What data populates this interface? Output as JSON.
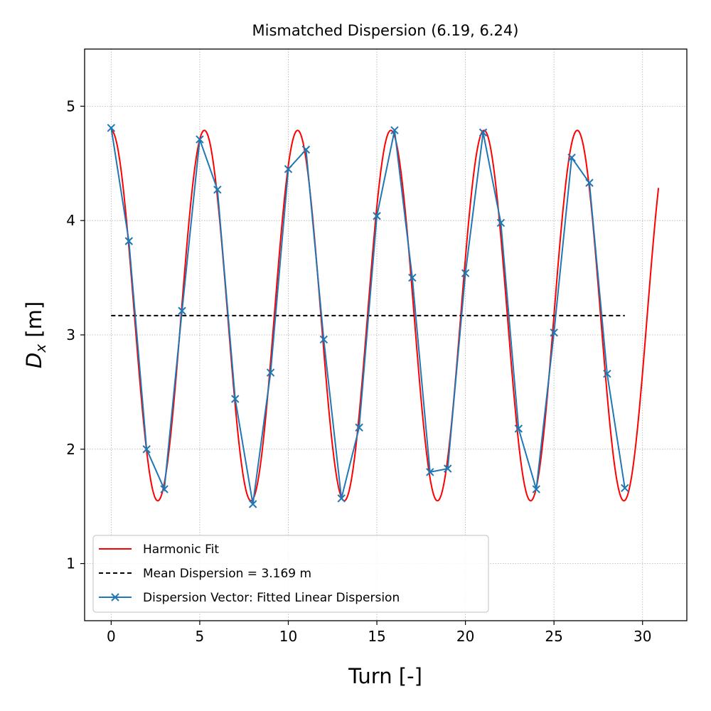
{
  "chart_data": {
    "type": "line",
    "title": "Mismatched Dispersion (6.19, 6.24)",
    "xlabel": "Turn [-]",
    "ylabel_main": "D",
    "ylabel_sub": "x",
    "ylabel_unit": " [m]",
    "xlim": [
      -1.5,
      32.5
    ],
    "ylim": [
      0.5,
      5.5
    ],
    "xticks": [
      0,
      5,
      10,
      15,
      20,
      25,
      30
    ],
    "yticks": [
      1,
      2,
      3,
      4,
      5
    ],
    "grid": true,
    "legend_position": "lower-left",
    "harmonic_fit": {
      "mean": 3.169,
      "amplitude": 1.62,
      "tune_fraction": 0.19,
      "phase_deg": 0,
      "x_start": 0,
      "x_end": 30.9,
      "color": "#ff0000"
    },
    "mean_line": {
      "y": 3.169,
      "x_start": 0,
      "x_end": 29,
      "color": "#000000"
    },
    "series": [
      {
        "name": "Dispersion Vector: Fitted Linear Dispersion",
        "color": "#1f77b4",
        "x": [
          0,
          1,
          2,
          3,
          4,
          5,
          6,
          7,
          8,
          9,
          10,
          11,
          12,
          13,
          14,
          15,
          16,
          17,
          18,
          19,
          20,
          21,
          22,
          23,
          24,
          25,
          26,
          27,
          28,
          29
        ],
        "y": [
          4.81,
          3.82,
          2.0,
          1.65,
          3.21,
          4.71,
          4.27,
          2.44,
          1.52,
          2.67,
          4.45,
          4.62,
          2.96,
          1.57,
          2.19,
          4.04,
          4.79,
          3.5,
          1.8,
          1.83,
          3.54,
          4.77,
          3.98,
          2.18,
          1.65,
          3.02,
          4.55,
          4.33,
          2.66,
          1.66
        ]
      }
    ],
    "legend": [
      {
        "label": "Harmonic Fit",
        "style": "solid",
        "color": "#ff0000"
      },
      {
        "label": "Mean Dispersion = 3.169 m",
        "style": "dashed",
        "color": "#000000"
      },
      {
        "label": "Dispersion Vector: Fitted Linear Dispersion",
        "style": "marker",
        "color": "#1f77b4"
      }
    ]
  }
}
